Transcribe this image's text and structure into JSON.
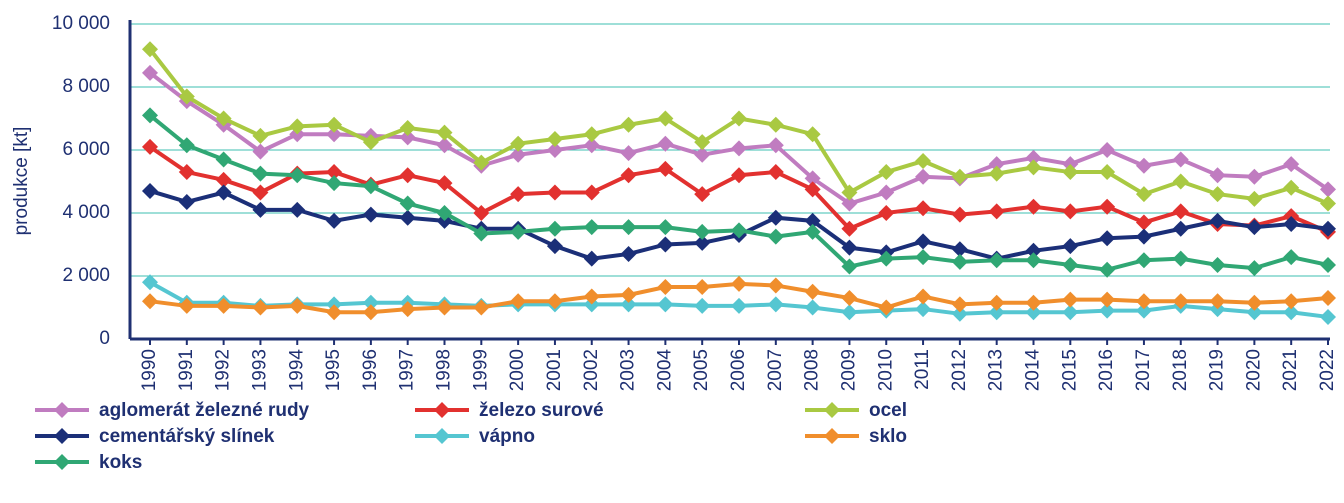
{
  "chart_data": {
    "type": "line",
    "y_label": "produkce [kt]",
    "categories": [
      "1990",
      "1991",
      "1992",
      "1993",
      "1994",
      "1995",
      "1996",
      "1997",
      "1998",
      "1999",
      "2000",
      "2001",
      "2002",
      "2003",
      "2004",
      "2005",
      "2006",
      "2007",
      "2008",
      "2009",
      "2010",
      "2011",
      "2012",
      "2013",
      "2014",
      "2015",
      "2016",
      "2017",
      "2018",
      "2019",
      "2020",
      "2021",
      "2022"
    ],
    "ylim": [
      0,
      10000
    ],
    "yticks": [
      0,
      {
        "value": 2000,
        "label": "2 000"
      },
      {
        "value": 4000,
        "label": "4 000"
      },
      {
        "value": 6000,
        "label": "6 000"
      },
      {
        "value": 8000,
        "label": "8 000"
      },
      {
        "value": 10000,
        "label": "10 000"
      }
    ],
    "grid": true,
    "series": [
      {
        "name": "aglomerát železné rudy",
        "color": "#c07cc0",
        "values": [
          8450,
          7550,
          6800,
          5950,
          6500,
          6500,
          6450,
          6400,
          6150,
          5500,
          5850,
          6000,
          6150,
          5900,
          6200,
          5850,
          6050,
          6150,
          5100,
          4300,
          4650,
          5150,
          5100,
          5550,
          5750,
          5550,
          6000,
          5500,
          5700,
          5200,
          5150,
          5550,
          4750
        ]
      },
      {
        "name": "železo surové",
        "color": "#e2312f",
        "values": [
          6100,
          5300,
          5050,
          4650,
          5250,
          5300,
          4900,
          5200,
          4950,
          4000,
          4600,
          4650,
          4650,
          5200,
          5400,
          4600,
          5200,
          5300,
          4750,
          3500,
          4000,
          4150,
          3950,
          4050,
          4200,
          4050,
          4200,
          3700,
          4050,
          3650,
          3600,
          3900,
          3400
        ]
      },
      {
        "name": "ocel",
        "color": "#a9c942",
        "values": [
          9200,
          7700,
          7000,
          6450,
          6750,
          6800,
          6250,
          6700,
          6550,
          5600,
          6200,
          6350,
          6500,
          6800,
          7000,
          6250,
          7000,
          6800,
          6500,
          4650,
          5300,
          5650,
          5150,
          5250,
          5450,
          5300,
          5300,
          4600,
          5000,
          4600,
          4450,
          4800,
          4300
        ]
      },
      {
        "name": "cementářský slínek",
        "color": "#1b2f78",
        "values": [
          4700,
          4350,
          4650,
          4100,
          4100,
          3750,
          3950,
          3850,
          3750,
          3500,
          3500,
          2950,
          2550,
          2700,
          3000,
          3050,
          3300,
          3850,
          3750,
          2900,
          2750,
          3100,
          2850,
          2550,
          2800,
          2950,
          3200,
          3250,
          3500,
          3750,
          3550,
          3650,
          3500
        ]
      },
      {
        "name": "vápno",
        "color": "#55c6d1",
        "values": [
          1800,
          1150,
          1150,
          1050,
          1100,
          1100,
          1150,
          1150,
          1100,
          1050,
          1100,
          1100,
          1100,
          1100,
          1100,
          1050,
          1050,
          1100,
          1000,
          850,
          900,
          950,
          800,
          850,
          850,
          850,
          900,
          900,
          1050,
          950,
          850,
          850,
          700
        ]
      },
      {
        "name": "sklo",
        "color": "#f08e2c",
        "values": [
          1200,
          1050,
          1050,
          1000,
          1050,
          850,
          850,
          950,
          1000,
          1000,
          1200,
          1200,
          1350,
          1400,
          1650,
          1650,
          1750,
          1700,
          1500,
          1300,
          1000,
          1350,
          1100,
          1150,
          1150,
          1250,
          1250,
          1200,
          1200,
          1200,
          1150,
          1200,
          1300
        ]
      },
      {
        "name": "koks",
        "color": "#30a774",
        "values": [
          7100,
          6150,
          5700,
          5250,
          5200,
          4950,
          4850,
          4300,
          4000,
          3350,
          3400,
          3500,
          3550,
          3550,
          3550,
          3400,
          3450,
          3250,
          3400,
          2300,
          2550,
          2600,
          2450,
          2500,
          2500,
          2350,
          2200,
          2500,
          2550,
          2350,
          2250,
          2600,
          2350
        ]
      }
    ]
  }
}
